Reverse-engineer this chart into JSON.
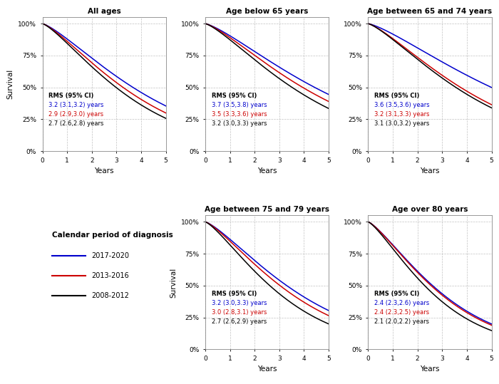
{
  "panels": [
    {
      "title": "All ages",
      "row": 0,
      "col": 0,
      "curves": [
        {
          "color": "#0000CC",
          "rms": "3.2 (3.1,3.2) years",
          "s5": 0.355,
          "shape": 1.3
        },
        {
          "color": "#CC0000",
          "rms": "2.9 (2.9,3.0) years",
          "s5": 0.3,
          "shape": 1.3
        },
        {
          "color": "#000000",
          "rms": "2.7 (2.6,2.8) years",
          "s5": 0.258,
          "shape": 1.3
        }
      ]
    },
    {
      "title": "Age below 65 years",
      "row": 0,
      "col": 1,
      "curves": [
        {
          "color": "#0000CC",
          "rms": "3.7 (3.5,3.8) years",
          "s5": 0.445,
          "shape": 1.3
        },
        {
          "color": "#CC0000",
          "rms": "3.5 (3.3,3.6) years",
          "s5": 0.39,
          "shape": 1.3
        },
        {
          "color": "#000000",
          "rms": "3.2 (3.0,3.3) years",
          "s5": 0.335,
          "shape": 1.3
        }
      ]
    },
    {
      "title": "Age between 65 and 74 years",
      "row": 0,
      "col": 2,
      "curves": [
        {
          "color": "#0000CC",
          "rms": "3.6 (3.5,3.6) years",
          "s5": 0.5,
          "shape": 1.3
        },
        {
          "color": "#CC0000",
          "rms": "3.2 (3.1,3.3) years",
          "s5": 0.365,
          "shape": 1.3
        },
        {
          "color": "#000000",
          "rms": "3.1 (3.0,3.2) years",
          "s5": 0.34,
          "shape": 1.3
        }
      ]
    },
    {
      "title": "Age between 75 and 79 years",
      "row": 1,
      "col": 1,
      "curves": [
        {
          "color": "#0000CC",
          "rms": "3.2 (3.0,3.3) years",
          "s5": 0.305,
          "shape": 1.3
        },
        {
          "color": "#CC0000",
          "rms": "3.0 (2.8,3.1) years",
          "s5": 0.265,
          "shape": 1.3
        },
        {
          "color": "#000000",
          "rms": "2.7 (2.6,2.9) years",
          "s5": 0.2,
          "shape": 1.3
        }
      ]
    },
    {
      "title": "Age over 80 years",
      "row": 1,
      "col": 2,
      "curves": [
        {
          "color": "#0000CC",
          "rms": "2.4 (2.3,2.6) years",
          "s5": 0.2,
          "shape": 1.3
        },
        {
          "color": "#CC0000",
          "rms": "2.4 (2.3,2.5) years",
          "s5": 0.19,
          "shape": 1.3
        },
        {
          "color": "#000000",
          "rms": "2.1 (2.0,2.2) years",
          "s5": 0.148,
          "shape": 1.3
        }
      ]
    }
  ],
  "legend_title": "Calendar period of diagnosis",
  "legend_entries": [
    {
      "label": "2017-2020",
      "color": "#0000CC"
    },
    {
      "label": "2013-2016",
      "color": "#CC0000"
    },
    {
      "label": "2008-2012",
      "color": "#000000"
    }
  ],
  "ylabel": "Survival",
  "xlabel": "Years",
  "ytick_vals": [
    0,
    25,
    50,
    75,
    100
  ],
  "ytick_labels": [
    "0%",
    "25%",
    "50%",
    "75%",
    "100%"
  ],
  "xticks": [
    0,
    1,
    2,
    3,
    4,
    5
  ],
  "bg_color": "#ffffff",
  "panel_bg": "#ffffff",
  "grid_color": "#bbbbbb",
  "rms_header_color": "#000000",
  "fig_width": 7.0,
  "fig_height": 5.39
}
